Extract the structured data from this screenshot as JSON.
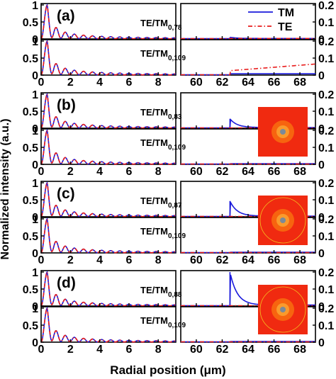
{
  "chart_data": {
    "type": "line",
    "xlabel": "Radial position (μm)",
    "ylabel": "Normalized intensity (a.u.)",
    "legend": {
      "position": "top-right",
      "entries": [
        {
          "name": "TM",
          "color": "#1a1adb",
          "style": "solid"
        },
        {
          "name": "TE",
          "color": "#e81c1c",
          "style": "dash-dot"
        }
      ]
    },
    "left_axis": {
      "xlim": [
        0,
        9.2
      ],
      "xticks": [
        "0",
        "2",
        "4",
        "6",
        "8"
      ],
      "ylim": [
        0,
        1
      ],
      "yticks_top": [
        "0",
        "0.5",
        "1"
      ],
      "yticks_bottom": [
        "0",
        "0.5",
        "1"
      ]
    },
    "right_axis": {
      "xlim": [
        58.8,
        69.2
      ],
      "xticks": [
        "60",
        "62",
        "64",
        "66",
        "68"
      ],
      "ylim": [
        0,
        0.2
      ],
      "yticks": [
        "0",
        "0.1",
        "0.2"
      ]
    },
    "left_curve_model": {
      "description": "Bessel-like radial profile, identical for TM and TE",
      "peak_x": 0.42,
      "oscillation_period_um": 0.62,
      "decay": "1/r"
    },
    "panels": [
      {
        "label": "(a)",
        "top_mode": {
          "prefix": "TE/TM",
          "subscript": "0,78"
        },
        "bottom_mode": {
          "prefix": "TE/TM",
          "subscript": "0,109"
        },
        "top_right": {
          "step_x": 62.6,
          "tm_jump": 0.01,
          "tm_after": 0.003,
          "te_after": 0.003
        },
        "bottom_right": {
          "step_x": 62.6,
          "tm_after": 0.008,
          "te_start": 0.026,
          "te_end": 0.065
        },
        "inset": false
      },
      {
        "label": "(b)",
        "top_mode": {
          "prefix": "TE/TM",
          "subscript": "0,83"
        },
        "bottom_mode": {
          "prefix": "TE/TM",
          "subscript": "0,109"
        },
        "top_right": {
          "step_x": 62.6,
          "tm_jump": 0.055,
          "tm_after": 0.004,
          "te_after": 0.002
        },
        "bottom_right": {
          "step_x": 62.6,
          "tm_after": 0.004,
          "te_after": 0.002
        },
        "inset": true,
        "inset_ring": false
      },
      {
        "label": "(c)",
        "top_mode": {
          "prefix": "TE/TM",
          "subscript": "0,87"
        },
        "bottom_mode": {
          "prefix": "TE/TM",
          "subscript": "0,109"
        },
        "top_right": {
          "step_x": 62.6,
          "tm_jump": 0.092,
          "tm_after": 0.004,
          "te_after": 0.002
        },
        "bottom_right": {
          "step_x": 62.6,
          "tm_after": 0.004,
          "te_after": 0.002
        },
        "inset": true,
        "inset_ring": true
      },
      {
        "label": "(d)",
        "top_mode": {
          "prefix": "TE/TM",
          "subscript": "0,88"
        },
        "bottom_mode": {
          "prefix": "TE/TM",
          "subscript": "0,109"
        },
        "top_right": {
          "step_x": 62.6,
          "tm_jump": 0.2,
          "tm_after": 0.006,
          "te_after": 0.002
        },
        "bottom_right": {
          "step_x": 62.6,
          "tm_after": 0.004,
          "te_after": 0.002
        },
        "inset": true,
        "inset_ring": true
      }
    ]
  }
}
